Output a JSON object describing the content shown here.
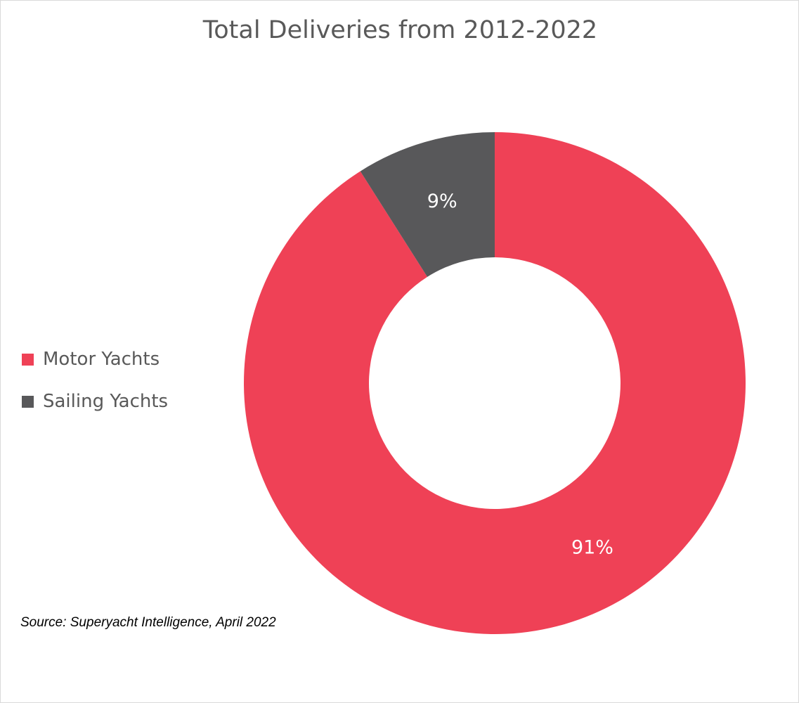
{
  "chart_data": {
    "type": "pie",
    "donut": true,
    "title": "Total Deliveries from 2012-2022",
    "categories": [
      "Motor Yachts",
      "Sailing Yachts"
    ],
    "values": [
      91,
      9
    ],
    "unit": "%",
    "data_labels": [
      "91%",
      "9%"
    ],
    "colors": [
      "#ef4156",
      "#58585a"
    ],
    "legend_placement": "left",
    "source": "Source: Superyacht Intelligence, April 2022"
  }
}
